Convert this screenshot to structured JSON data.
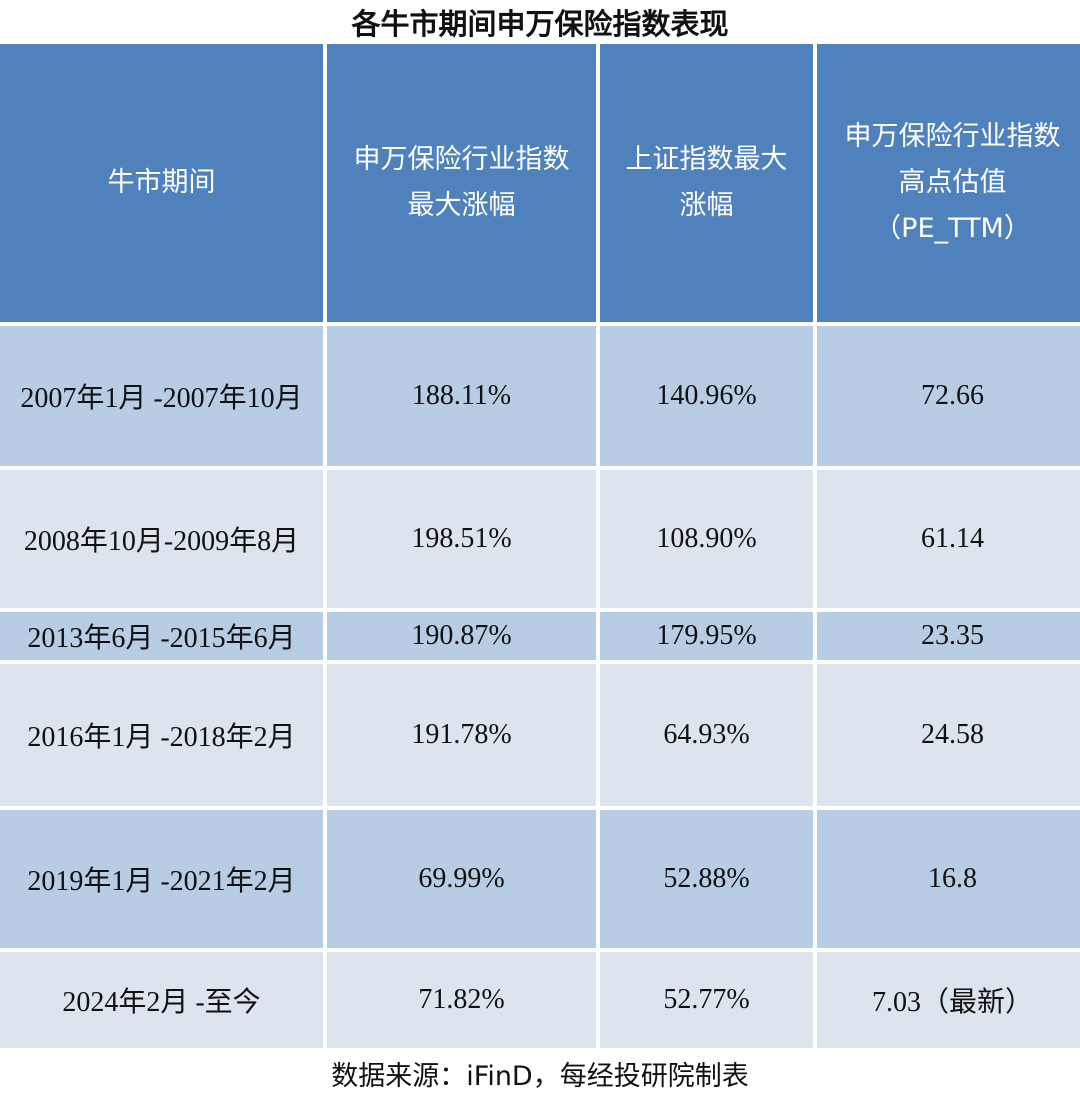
{
  "title": "各牛市期间申万保险指数表现",
  "table": {
    "headers": [
      "牛市期间",
      "申万保险行业指数\n最大涨幅",
      "上证指数最大\n涨幅",
      "申万保险行业指数\n高点估值\n（PE_TTM）"
    ],
    "rows": [
      {
        "period": "2007年1月 -2007年10月",
        "insurance_gain": "188.11%",
        "sse_gain": "140.96%",
        "pe_ttm": "72.66"
      },
      {
        "period": "2008年10月-2009年8月",
        "insurance_gain": "198.51%",
        "sse_gain": "108.90%",
        "pe_ttm": "61.14"
      },
      {
        "period": "2013年6月 -2015年6月",
        "insurance_gain": "190.87%",
        "sse_gain": "179.95%",
        "pe_ttm": "23.35"
      },
      {
        "period": "2016年1月 -2018年2月",
        "insurance_gain": "191.78%",
        "sse_gain": "64.93%",
        "pe_ttm": "24.58"
      },
      {
        "period": "2019年1月 -2021年2月",
        "insurance_gain": "69.99%",
        "sse_gain": "52.88%",
        "pe_ttm": "16.8"
      },
      {
        "period": "2024年2月 -至今",
        "insurance_gain": "71.82%",
        "sse_gain": "52.77%",
        "pe_ttm": "7.03（最新）"
      }
    ]
  },
  "footer": {
    "source": "数据来源：iFinD，每经投研院制表"
  },
  "colors": {
    "header_bg": "#4F81BD",
    "row_dark_bg": "#B8CCE4",
    "row_light_bg": "#DCE4EE",
    "divider": "#FFFFFF"
  }
}
